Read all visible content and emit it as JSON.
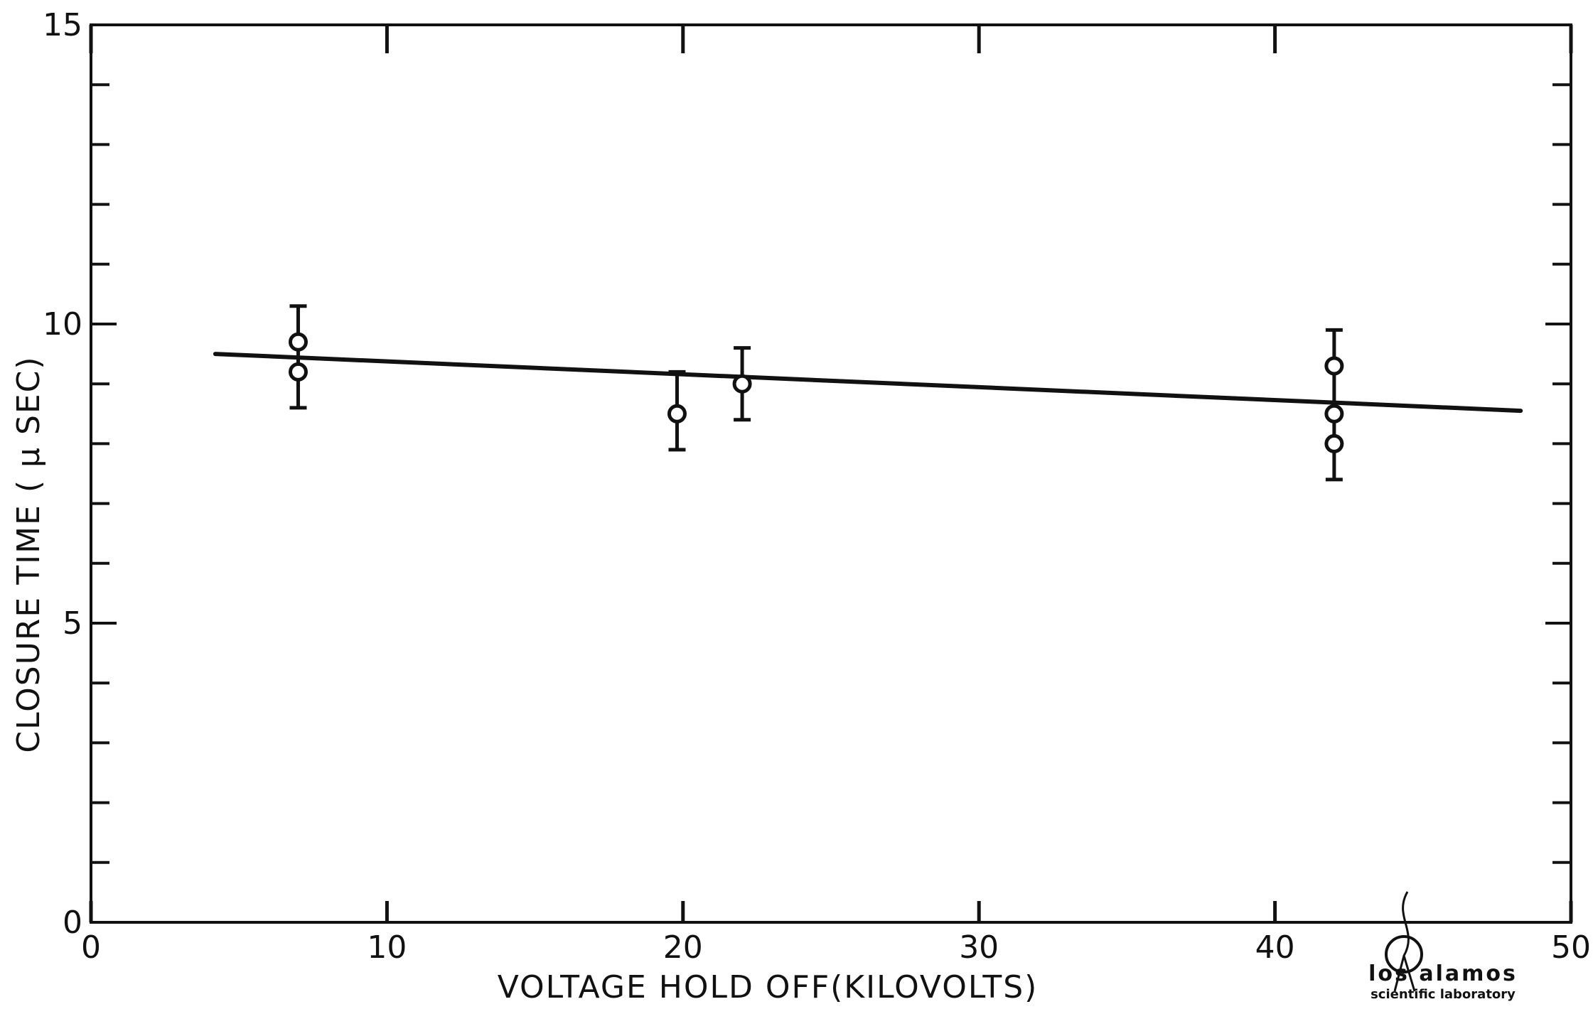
{
  "chart_data": {
    "type": "scatter",
    "title": "",
    "xlabel": "VOLTAGE HOLD OFF(KILOVOLTS)",
    "ylabel": "CLOSURE TIME ( μ SEC)",
    "xlim": [
      0,
      50
    ],
    "ylim": [
      0,
      15
    ],
    "xticks": [
      0,
      10,
      20,
      30,
      40,
      50
    ],
    "yticks": [
      0,
      5,
      10,
      15
    ],
    "xtick_labels": [
      "0",
      "10",
      "20",
      "30",
      "40",
      "50"
    ],
    "ytick_labels": [
      "0",
      "5",
      "10",
      "15"
    ],
    "minor_y_step": 1,
    "grid": false,
    "points": [
      {
        "x": 7.0,
        "y": 9.7
      },
      {
        "x": 7.0,
        "y": 9.2
      },
      {
        "x": 19.8,
        "y": 8.5
      },
      {
        "x": 22.0,
        "y": 9.0
      },
      {
        "x": 42.0,
        "y": 9.3
      },
      {
        "x": 42.0,
        "y": 8.5
      },
      {
        "x": 42.0,
        "y": 8.0
      }
    ],
    "error_bars": [
      {
        "x": 7.0,
        "low": 8.6,
        "high": 10.3
      },
      {
        "x": 19.8,
        "low": 7.9,
        "high": 9.2
      },
      {
        "x": 22.0,
        "low": 8.4,
        "high": 9.6
      },
      {
        "x": 42.0,
        "low": 7.4,
        "high": 9.9
      }
    ],
    "fit_line": {
      "x": [
        4.2,
        48.3
      ],
      "y": [
        9.5,
        8.55
      ]
    }
  },
  "logo": {
    "line1": "los alamos",
    "line2": "scientific laboratory"
  }
}
